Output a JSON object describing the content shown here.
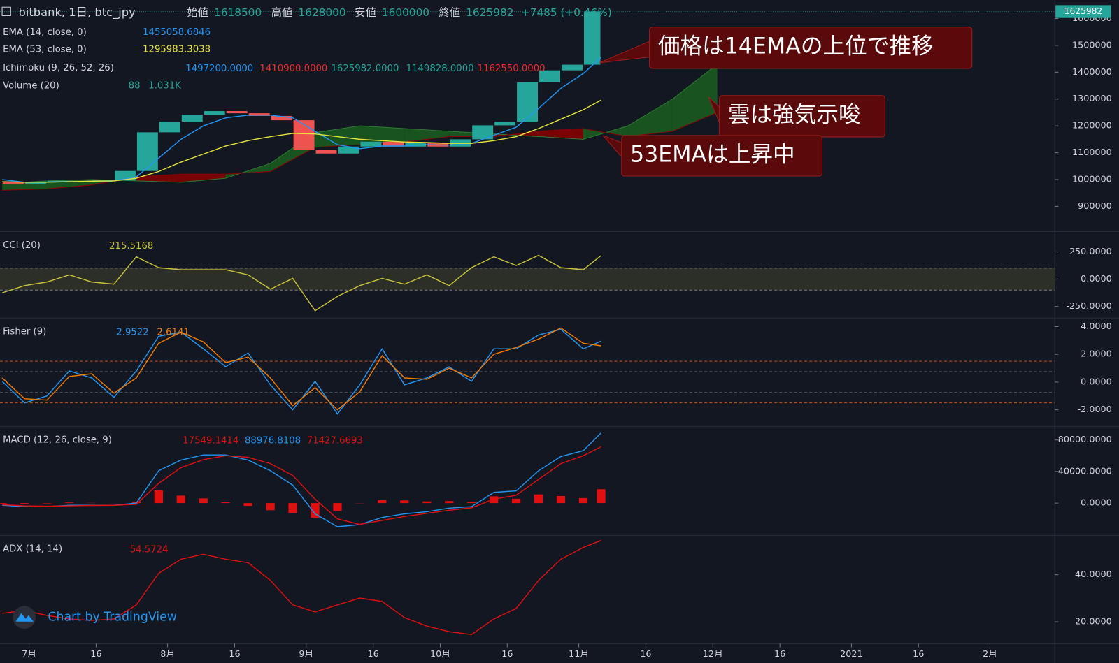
{
  "x_axis": {
    "xlim": [
      176.5,
      412.5
    ],
    "xticks": [
      {
        "value": 183,
        "label": "7月"
      },
      {
        "value": 198,
        "label": "16"
      },
      {
        "value": 214,
        "label": "8月"
      },
      {
        "value": 229,
        "label": "16"
      },
      {
        "value": 245,
        "label": "9月"
      },
      {
        "value": 260,
        "label": "16"
      },
      {
        "value": 275,
        "label": "10月"
      },
      {
        "value": 290,
        "label": "16"
      },
      {
        "value": 306,
        "label": "11月"
      },
      {
        "value": 321,
        "label": "16"
      },
      {
        "value": 336,
        "label": "12月"
      },
      {
        "value": 351,
        "label": "16"
      },
      {
        "value": 367,
        "label": "2021"
      },
      {
        "value": 382,
        "label": "16"
      },
      {
        "value": 398,
        "label": "2月"
      }
    ]
  },
  "watermark": "Chart by TradingView",
  "chart_data": [
    {
      "type": "candlestick",
      "title": "bitbank, 1日, btc_jpy",
      "ohlc_labels": [
        "始値",
        "高値",
        "安値",
        "終値"
      ],
      "ohlc_values": [
        1618500,
        1628000,
        1600000,
        1625982
      ],
      "change": "+7485 (+0.46%)",
      "x": [
        177,
        182,
        187,
        192,
        197,
        202,
        207,
        212,
        217,
        222,
        227,
        232,
        237,
        242,
        247,
        252,
        257,
        262,
        267,
        272,
        277,
        282,
        287,
        292,
        297,
        302,
        307,
        311
      ],
      "ylim": [
        811000,
        1669000
      ],
      "yticks": [
        900000,
        1000000,
        1100000,
        1200000,
        1300000,
        1400000,
        1500000,
        1600000
      ],
      "series": [
        {
          "up_color": "#26a69a",
          "down_color": "#ef5350",
          "values": [
            992000,
            984000,
            992000,
            995000,
            992000,
            997000,
            1032000,
            1176000,
            1216000,
            1242000,
            1255000,
            1247000,
            1237000,
            1221000,
            1110000,
            1097000,
            1123000,
            1141000,
            1123000,
            1136000,
            1123000,
            1150000,
            1202000,
            1216000,
            1362000,
            1407000,
            1428000,
            1625982
          ]
        },
        {
          "name": "EMA (14, close, 0)",
          "color": "#2196f3",
          "values": [
            1000000,
            990000,
            990000,
            993000,
            993000,
            995000,
            1010000,
            1080000,
            1150000,
            1200000,
            1230000,
            1240000,
            1240000,
            1230000,
            1180000,
            1130000,
            1115000,
            1125000,
            1125000,
            1130000,
            1128000,
            1135000,
            1165000,
            1195000,
            1265000,
            1340000,
            1395000,
            1455058.6846
          ]
        },
        {
          "name": "EMA (53, close, 0)",
          "color": "#e6e33a",
          "values": [
            992000,
            990000,
            990000,
            992000,
            994000,
            995000,
            1005000,
            1030000,
            1065000,
            1095000,
            1125000,
            1145000,
            1160000,
            1172000,
            1170000,
            1160000,
            1150000,
            1145000,
            1140000,
            1138000,
            1135000,
            1135000,
            1145000,
            1160000,
            1190000,
            1225000,
            1260000,
            1295983.3038
          ]
        }
      ],
      "ichimoku": {
        "name": "Ichimoku (9, 26, 52, 26)",
        "legend_values": [
          {
            "value": 1497200,
            "label": "1497200.0000"
          },
          {
            "value": 1410900,
            "label": "1410900.0000"
          },
          {
            "value": 1625982,
            "label": "1625982.0000"
          },
          {
            "value": 1149828,
            "label": "1149828.0000"
          },
          {
            "value": 1162550,
            "label": "1162550.0000"
          }
        ],
        "legend_colors": [
          "#2196f3",
          "#ef2b2b",
          "#26a69a",
          "#26a69a",
          "#ef2b2b"
        ],
        "x": [
          177,
          187,
          197,
          207,
          217,
          227,
          237,
          247,
          257,
          267,
          277,
          287,
          297,
          307,
          317,
          327,
          337
        ],
        "span_a": [
          985000,
          995000,
          1000000,
          995000,
          990000,
          1005000,
          1060000,
          1175000,
          1200000,
          1190000,
          1180000,
          1170000,
          1160000,
          1150000,
          1200000,
          1300000,
          1430000
        ],
        "span_b": [
          960000,
          965000,
          980000,
          1010000,
          1020000,
          1020000,
          1030000,
          1120000,
          1130000,
          1140000,
          1160000,
          1160000,
          1180000,
          1190000,
          1160000,
          1180000,
          1250000
        ],
        "bull_color": "#1b5e20",
        "bear_color": "#8b0000"
      },
      "volume": {
        "name": "Volume (20)",
        "legend_values": [
          88,
          "1.031K"
        ]
      },
      "annotations": [
        "価格は14EMAの上位で推移",
        "雲は強気示唆",
        "53EMAは上昇中"
      ]
    },
    {
      "type": "line",
      "x": [
        177,
        182,
        187,
        192,
        197,
        202,
        207,
        212,
        217,
        222,
        227,
        232,
        237,
        242,
        247,
        252,
        257,
        262,
        267,
        272,
        277,
        282,
        287,
        292,
        297,
        302,
        307,
        311
      ],
      "ylim": [
        -355,
        421
      ],
      "yticks": [
        {
          "value": -250,
          "label": "-250.0000"
        },
        {
          "value": 0,
          "label": "0.0000"
        },
        {
          "value": 250,
          "label": "250.0000"
        }
      ],
      "band": [
        -100,
        100
      ],
      "series": [
        {
          "name": "CCI (20)",
          "color": "#c9c33a",
          "values": [
            -125,
            -59,
            -26,
            39,
            -26,
            -46,
            204,
            105,
            86,
            86,
            86,
            39,
            -92,
            7,
            -289,
            -158,
            -59,
            7,
            -46,
            39,
            -59,
            105,
            204,
            125,
            217,
            105,
            86,
            215.5168
          ]
        }
      ]
    },
    {
      "type": "line",
      "x": [
        177,
        182,
        187,
        192,
        197,
        202,
        207,
        212,
        217,
        222,
        227,
        232,
        237,
        242,
        247,
        252,
        257,
        262,
        267,
        272,
        277,
        282,
        287,
        292,
        297,
        302,
        307,
        311
      ],
      "ylim": [
        -3.19,
        4.52
      ],
      "yticks": [
        {
          "value": -2,
          "label": "-2.0000"
        },
        {
          "value": 0,
          "label": "0.0000"
        },
        {
          "value": 2,
          "label": "2.0000"
        },
        {
          "value": 4,
          "label": "4.0000"
        }
      ],
      "levels": [
        -1.5,
        -0.75,
        0.75,
        1.5
      ],
      "series": [
        {
          "name": "Fisher (9)",
          "color": "#2196f3",
          "values": [
            0.05,
            -1.5,
            -1.0,
            0.8,
            0.3,
            -1.1,
            0.8,
            3.3,
            3.6,
            2.4,
            1.1,
            2.1,
            -0.2,
            -2.0,
            0.05,
            -2.3,
            -0.2,
            2.4,
            -0.2,
            0.3,
            1.1,
            0.05,
            2.4,
            2.4,
            3.4,
            3.8,
            2.4,
            2.9522
          ]
        },
        {
          "color": "#f57c00",
          "values": [
            0.3,
            -1.2,
            -1.3,
            0.4,
            0.6,
            -0.8,
            0.3,
            2.8,
            3.6,
            2.9,
            1.4,
            1.8,
            0.3,
            -1.7,
            -0.4,
            -2.0,
            -0.7,
            1.9,
            0.3,
            0.2,
            1.0,
            0.3,
            2.0,
            2.5,
            3.1,
            3.9,
            2.8,
            2.6141
          ]
        }
      ]
    },
    {
      "type": "line",
      "x": [
        177,
        182,
        187,
        192,
        197,
        202,
        207,
        212,
        217,
        222,
        227,
        232,
        237,
        242,
        247,
        252,
        257,
        262,
        267,
        272,
        277,
        282,
        287,
        292,
        297,
        302,
        307,
        311
      ],
      "ylim": [
        -40909,
        95455
      ],
      "yticks": [
        {
          "value": 0,
          "label": "0.0000"
        },
        {
          "value": 40000,
          "label": "40000.0000"
        },
        {
          "value": 80000,
          "label": "80000.0000"
        }
      ],
      "series": [
        {
          "name": "MACD (12, 26, close, 9)",
          "style": "bar",
          "color": "#e01010",
          "values": [
            -700,
            -1000,
            -500,
            800,
            300,
            100,
            1500,
            16000,
            9500,
            6000,
            1000,
            -3500,
            -9000,
            -12300,
            -18600,
            -10000,
            -300,
            3800,
            3400,
            2100,
            2600,
            1500,
            8600,
            5500,
            11000,
            9000,
            6400,
            17549.1414
          ]
        },
        {
          "color": "#2196f3",
          "values": [
            -2700,
            -4500,
            -4500,
            -2700,
            -2700,
            -2700,
            0,
            41000,
            54500,
            61000,
            61000,
            54500,
            41000,
            22700,
            -13600,
            -30000,
            -27300,
            -18200,
            -13600,
            -10900,
            -6400,
            -4500,
            13600,
            15500,
            41000,
            59000,
            66400,
            88976.8108
          ]
        },
        {
          "color": "#e01010",
          "values": [
            -2000,
            -3500,
            -4000,
            -3500,
            -3000,
            -2800,
            -1500,
            25000,
            45000,
            55000,
            60000,
            58000,
            50000,
            35000,
            5000,
            -20000,
            -27000,
            -22000,
            -17000,
            -13000,
            -9000,
            -6000,
            5000,
            10000,
            30000,
            50000,
            60000,
            71427.6693
          ]
        }
      ]
    },
    {
      "type": "line",
      "x": [
        177,
        182,
        187,
        192,
        197,
        202,
        207,
        212,
        217,
        222,
        227,
        232,
        237,
        242,
        247,
        252,
        257,
        262,
        267,
        272,
        277,
        282,
        287,
        292,
        297,
        302,
        307,
        311
      ],
      "ylim": [
        10.7,
        56.1
      ],
      "yticks": [
        {
          "value": 20,
          "label": "20.0000"
        },
        {
          "value": 40,
          "label": "40.0000"
        }
      ],
      "series": [
        {
          "name": "ADX (14, 14)",
          "color": "#e01010",
          "values": [
            23.6,
            24.8,
            22.7,
            21.2,
            20.6,
            21.2,
            27.2,
            40.6,
            46.6,
            48.7,
            46.6,
            45.1,
            37.6,
            27.2,
            24.2,
            27.2,
            30.1,
            28.7,
            21.8,
            18.2,
            15.8,
            14.6,
            21.2,
            25.7,
            37.6,
            46.6,
            51.6,
            54.5724
          ]
        }
      ]
    }
  ]
}
